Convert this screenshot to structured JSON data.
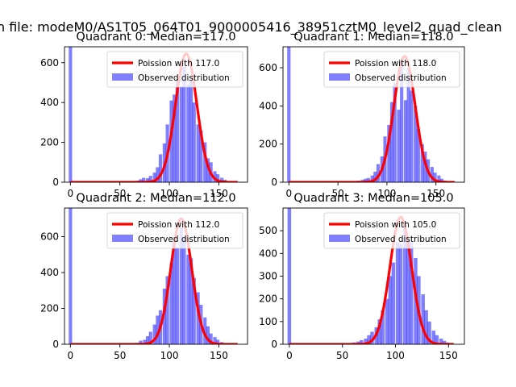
{
  "figure": {
    "suptitle": "n file: modeM0/AS1T05_064T01_9000005416_38951cztM0_level2_quad_clean"
  },
  "chart_data": [
    {
      "type": "bar",
      "title": "Quadrant 0: Median=117.0",
      "xlim": [
        -6,
        179
      ],
      "ylim": [
        0,
        680
      ],
      "xticks": [
        0,
        50,
        100,
        150
      ],
      "yticks": [
        0,
        200,
        400,
        600
      ],
      "median": 117,
      "bin_width": 3.4,
      "colors": {
        "hist": "#0000ff",
        "fit": "#ff0000"
      },
      "legend": {
        "position": "top-right",
        "fit_label": "Poission with 117.0",
        "hist_label": "Observed distribution"
      },
      "spike": {
        "x": 0,
        "count": 680
      },
      "bins": [
        [
          64,
          4
        ],
        [
          68,
          8
        ],
        [
          71,
          15
        ],
        [
          74,
          22
        ],
        [
          78,
          20
        ],
        [
          81,
          32
        ],
        [
          85,
          48
        ],
        [
          88,
          75
        ],
        [
          91,
          140
        ],
        [
          95,
          195
        ],
        [
          98,
          290
        ],
        [
          102,
          410
        ],
        [
          105,
          440
        ],
        [
          108,
          510
        ],
        [
          112,
          480
        ],
        [
          115,
          580
        ],
        [
          119,
          490
        ],
        [
          122,
          520
        ],
        [
          125,
          400
        ],
        [
          129,
          290
        ],
        [
          132,
          260
        ],
        [
          136,
          200
        ],
        [
          139,
          120
        ],
        [
          142,
          100
        ],
        [
          146,
          55
        ],
        [
          149,
          40
        ],
        [
          153,
          22
        ],
        [
          156,
          12
        ],
        [
          159,
          6
        ],
        [
          163,
          3
        ]
      ],
      "fit": {
        "mean": 117,
        "peak": 645
      }
    },
    {
      "type": "bar",
      "title": "Quadrant 1: Median=118.0",
      "xlim": [
        -6,
        179
      ],
      "ylim": [
        0,
        710
      ],
      "xticks": [
        0,
        50,
        100,
        150
      ],
      "yticks": [
        0,
        200,
        400,
        600
      ],
      "median": 118,
      "bin_width": 3.4,
      "colors": {
        "hist": "#0000ff",
        "fit": "#ff0000"
      },
      "legend": {
        "position": "top-right",
        "fit_label": "Poission with 118.0",
        "hist_label": "Observed distribution"
      },
      "spike": {
        "x": 0,
        "count": 710
      },
      "bins": [
        [
          68,
          4
        ],
        [
          71,
          8
        ],
        [
          75,
          12
        ],
        [
          78,
          18
        ],
        [
          81,
          22
        ],
        [
          85,
          35
        ],
        [
          88,
          55
        ],
        [
          91,
          95
        ],
        [
          95,
          135
        ],
        [
          98,
          240
        ],
        [
          102,
          300
        ],
        [
          105,
          420
        ],
        [
          108,
          520
        ],
        [
          112,
          380
        ],
        [
          115,
          640
        ],
        [
          119,
          430
        ],
        [
          122,
          600
        ],
        [
          125,
          480
        ],
        [
          129,
          400
        ],
        [
          132,
          280
        ],
        [
          136,
          200
        ],
        [
          139,
          160
        ],
        [
          142,
          120
        ],
        [
          146,
          80
        ],
        [
          149,
          50
        ],
        [
          153,
          35
        ],
        [
          156,
          18
        ],
        [
          159,
          8
        ],
        [
          163,
          4
        ]
      ],
      "fit": {
        "mean": 118,
        "peak": 660
      }
    },
    {
      "type": "bar",
      "title": "Quadrant 2: Median=112.0",
      "xlim": [
        -6,
        179
      ],
      "ylim": [
        0,
        760
      ],
      "xticks": [
        0,
        50,
        100,
        150
      ],
      "yticks": [
        0,
        200,
        400,
        600
      ],
      "median": 112,
      "bin_width": 3.4,
      "colors": {
        "hist": "#0000ff",
        "fit": "#ff0000"
      },
      "legend": {
        "position": "top-right",
        "fit_label": "Poission with 112.0",
        "hist_label": "Observed distribution"
      },
      "spike": {
        "x": 0,
        "count": 760
      },
      "bins": [
        [
          68,
          8
        ],
        [
          71,
          20
        ],
        [
          75,
          25
        ],
        [
          78,
          45
        ],
        [
          81,
          70
        ],
        [
          85,
          110
        ],
        [
          88,
          160
        ],
        [
          91,
          190
        ],
        [
          95,
          310
        ],
        [
          98,
          380
        ],
        [
          102,
          450
        ],
        [
          105,
          600
        ],
        [
          108,
          540
        ],
        [
          112,
          650
        ],
        [
          115,
          600
        ],
        [
          119,
          500
        ],
        [
          122,
          480
        ],
        [
          125,
          370
        ],
        [
          129,
          290
        ],
        [
          132,
          220
        ],
        [
          136,
          150
        ],
        [
          139,
          100
        ],
        [
          142,
          60
        ],
        [
          146,
          40
        ],
        [
          149,
          25
        ],
        [
          153,
          12
        ],
        [
          156,
          6
        ]
      ],
      "fit": {
        "mean": 112,
        "peak": 700
      }
    },
    {
      "type": "bar",
      "title": "Quadrant 3: Median=105.0",
      "xlim": [
        -6,
        165
      ],
      "ylim": [
        0,
        600
      ],
      "xticks": [
        0,
        50,
        100,
        150
      ],
      "yticks": [
        0,
        100,
        200,
        300,
        400,
        500
      ],
      "median": 105,
      "bin_width": 3.4,
      "colors": {
        "hist": "#0000ff",
        "fit": "#ff0000"
      },
      "legend": {
        "position": "top-right",
        "fit_label": "Poission with 105.0",
        "hist_label": "Observed distribution"
      },
      "spike": {
        "x": 0,
        "count": 600
      },
      "bins": [
        [
          58,
          4
        ],
        [
          61,
          8
        ],
        [
          65,
          12
        ],
        [
          68,
          18
        ],
        [
          72,
          25
        ],
        [
          75,
          40
        ],
        [
          78,
          55
        ],
        [
          82,
          75
        ],
        [
          85,
          110
        ],
        [
          88,
          150
        ],
        [
          92,
          200
        ],
        [
          95,
          300
        ],
        [
          98,
          360
        ],
        [
          102,
          450
        ],
        [
          105,
          440
        ],
        [
          109,
          540
        ],
        [
          112,
          470
        ],
        [
          115,
          450
        ],
        [
          119,
          380
        ],
        [
          122,
          300
        ],
        [
          126,
          220
        ],
        [
          129,
          150
        ],
        [
          132,
          100
        ],
        [
          136,
          60
        ],
        [
          139,
          40
        ],
        [
          143,
          25
        ],
        [
          146,
          15
        ],
        [
          149,
          8
        ],
        [
          153,
          4
        ]
      ],
      "fit": {
        "mean": 105,
        "peak": 560
      }
    }
  ]
}
